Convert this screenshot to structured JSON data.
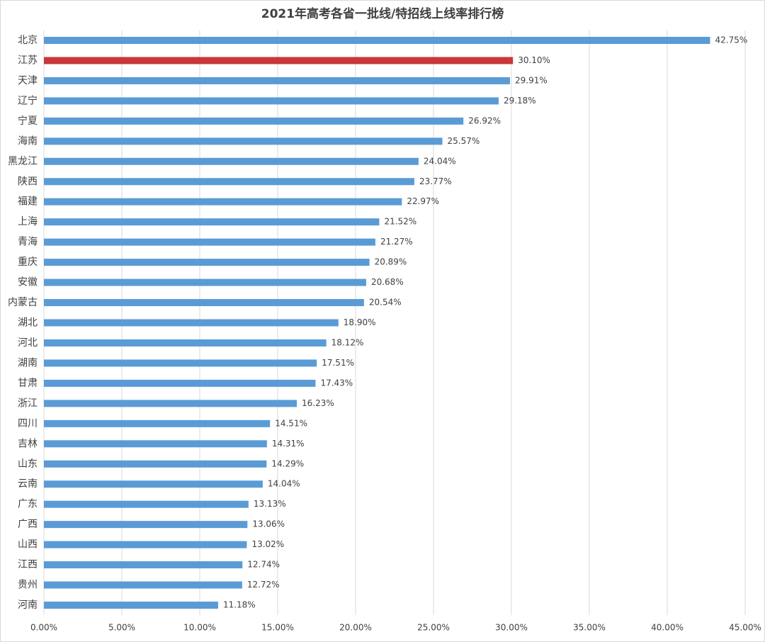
{
  "chart_data": {
    "type": "hbar",
    "title": "2021年高考各省一批线/特招线上线率排行榜",
    "categories": [
      "北京",
      "江苏",
      "天津",
      "辽宁",
      "宁夏",
      "海南",
      "黑龙江",
      "陕西",
      "福建",
      "上海",
      "青海",
      "重庆",
      "安徽",
      "内蒙古",
      "湖北",
      "河北",
      "湖南",
      "甘肃",
      "浙江",
      "四川",
      "吉林",
      "山东",
      "云南",
      "广东",
      "广西",
      "山西",
      "江西",
      "贵州",
      "河南"
    ],
    "values": [
      42.75,
      30.1,
      29.91,
      29.18,
      26.92,
      25.57,
      24.04,
      23.77,
      22.97,
      21.52,
      21.27,
      20.89,
      20.68,
      20.54,
      18.9,
      18.12,
      17.51,
      17.43,
      16.23,
      14.51,
      14.31,
      14.29,
      14.04,
      13.13,
      13.06,
      13.02,
      12.74,
      12.72,
      11.18
    ],
    "value_labels": [
      "42.75%",
      "30.10%",
      "29.91%",
      "29.18%",
      "26.92%",
      "25.57%",
      "24.04%",
      "23.77%",
      "22.97%",
      "21.52%",
      "21.27%",
      "20.89%",
      "20.68%",
      "20.54%",
      "18.90%",
      "18.12%",
      "17.51%",
      "17.43%",
      "16.23%",
      "14.51%",
      "14.31%",
      "14.29%",
      "14.04%",
      "13.13%",
      "13.06%",
      "13.02%",
      "12.74%",
      "12.72%",
      "11.18%"
    ],
    "colors": [
      "#5b9bd5",
      "#c8373a",
      "#5b9bd5",
      "#5b9bd5",
      "#5b9bd5",
      "#5b9bd5",
      "#5b9bd5",
      "#5b9bd5",
      "#5b9bd5",
      "#5b9bd5",
      "#5b9bd5",
      "#5b9bd5",
      "#5b9bd5",
      "#5b9bd5",
      "#5b9bd5",
      "#5b9bd5",
      "#5b9bd5",
      "#5b9bd5",
      "#5b9bd5",
      "#5b9bd5",
      "#5b9bd5",
      "#5b9bd5",
      "#5b9bd5",
      "#5b9bd5",
      "#5b9bd5",
      "#5b9bd5",
      "#5b9bd5",
      "#5b9bd5",
      "#5b9bd5"
    ],
    "xlim": [
      0,
      45
    ],
    "xticks": [
      {
        "value": 0,
        "label": "0.00%"
      },
      {
        "value": 5,
        "label": "5.00%"
      },
      {
        "value": 10,
        "label": "10.00%"
      },
      {
        "value": 15,
        "label": "15.00%"
      },
      {
        "value": 20,
        "label": "20.00%"
      },
      {
        "value": 25,
        "label": "25.00%"
      },
      {
        "value": 30,
        "label": "30.00%"
      },
      {
        "value": 35,
        "label": "35.00%"
      },
      {
        "value": 40,
        "label": "40.00%"
      },
      {
        "value": 45,
        "label": "45.00%"
      }
    ],
    "grid": true
  }
}
